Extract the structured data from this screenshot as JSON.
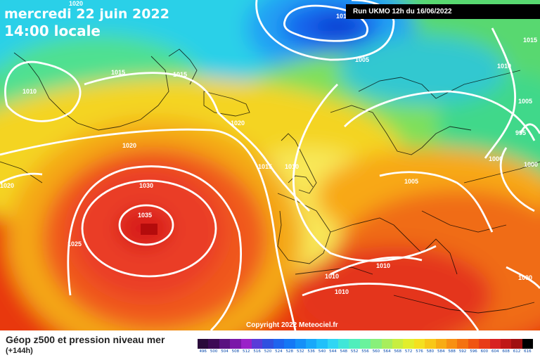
{
  "header": {
    "date_text": "mercredi 22 juin 2022",
    "time_text": "14:00 locale"
  },
  "run_label": "Run UKMO 12h du 16/06/2022",
  "copyright": "Copyright 2022 Meteociel.fr",
  "footer": {
    "title": "Géop z500 et pression niveau mer",
    "subtitle": "(+144h)"
  },
  "isobar_labels": [
    "1020",
    "1015",
    "1015",
    "1010",
    "1020",
    "1020",
    "1015",
    "1010",
    "1020",
    "1030",
    "1035",
    "1025",
    "1005",
    "1010",
    "1015",
    "1010",
    "1005",
    "995",
    "1000",
    "1000",
    "1005",
    "1010",
    "1010",
    "1010",
    "1000"
  ],
  "legend": {
    "values": [
      "496",
      "500",
      "504",
      "508",
      "512",
      "516",
      "520",
      "524",
      "528",
      "532",
      "536",
      "540",
      "544",
      "548",
      "552",
      "556",
      "560",
      "564",
      "568",
      "572",
      "576",
      "580",
      "584",
      "588",
      "592",
      "596",
      "600",
      "604",
      "608",
      "612",
      "616"
    ],
    "colors": [
      "#2a0a3a",
      "#3d0a55",
      "#5a1280",
      "#7a18a8",
      "#9a22c8",
      "#5a3cd8",
      "#3050e0",
      "#1e64ee",
      "#1478f5",
      "#1490f8",
      "#18a8fa",
      "#20c0fa",
      "#30d6f4",
      "#40e6d8",
      "#50eebc",
      "#6af29c",
      "#88f07a",
      "#a8ee5c",
      "#c8ee40",
      "#e2ee2c",
      "#f4e020",
      "#f8c818",
      "#f8ac14",
      "#f89012",
      "#f47210",
      "#f05410",
      "#e83c18",
      "#d82222",
      "#c01818",
      "#a01010",
      "#000000"
    ]
  },
  "colors": {
    "isobar": "#ffffff",
    "run_label_bg": "#000000"
  }
}
